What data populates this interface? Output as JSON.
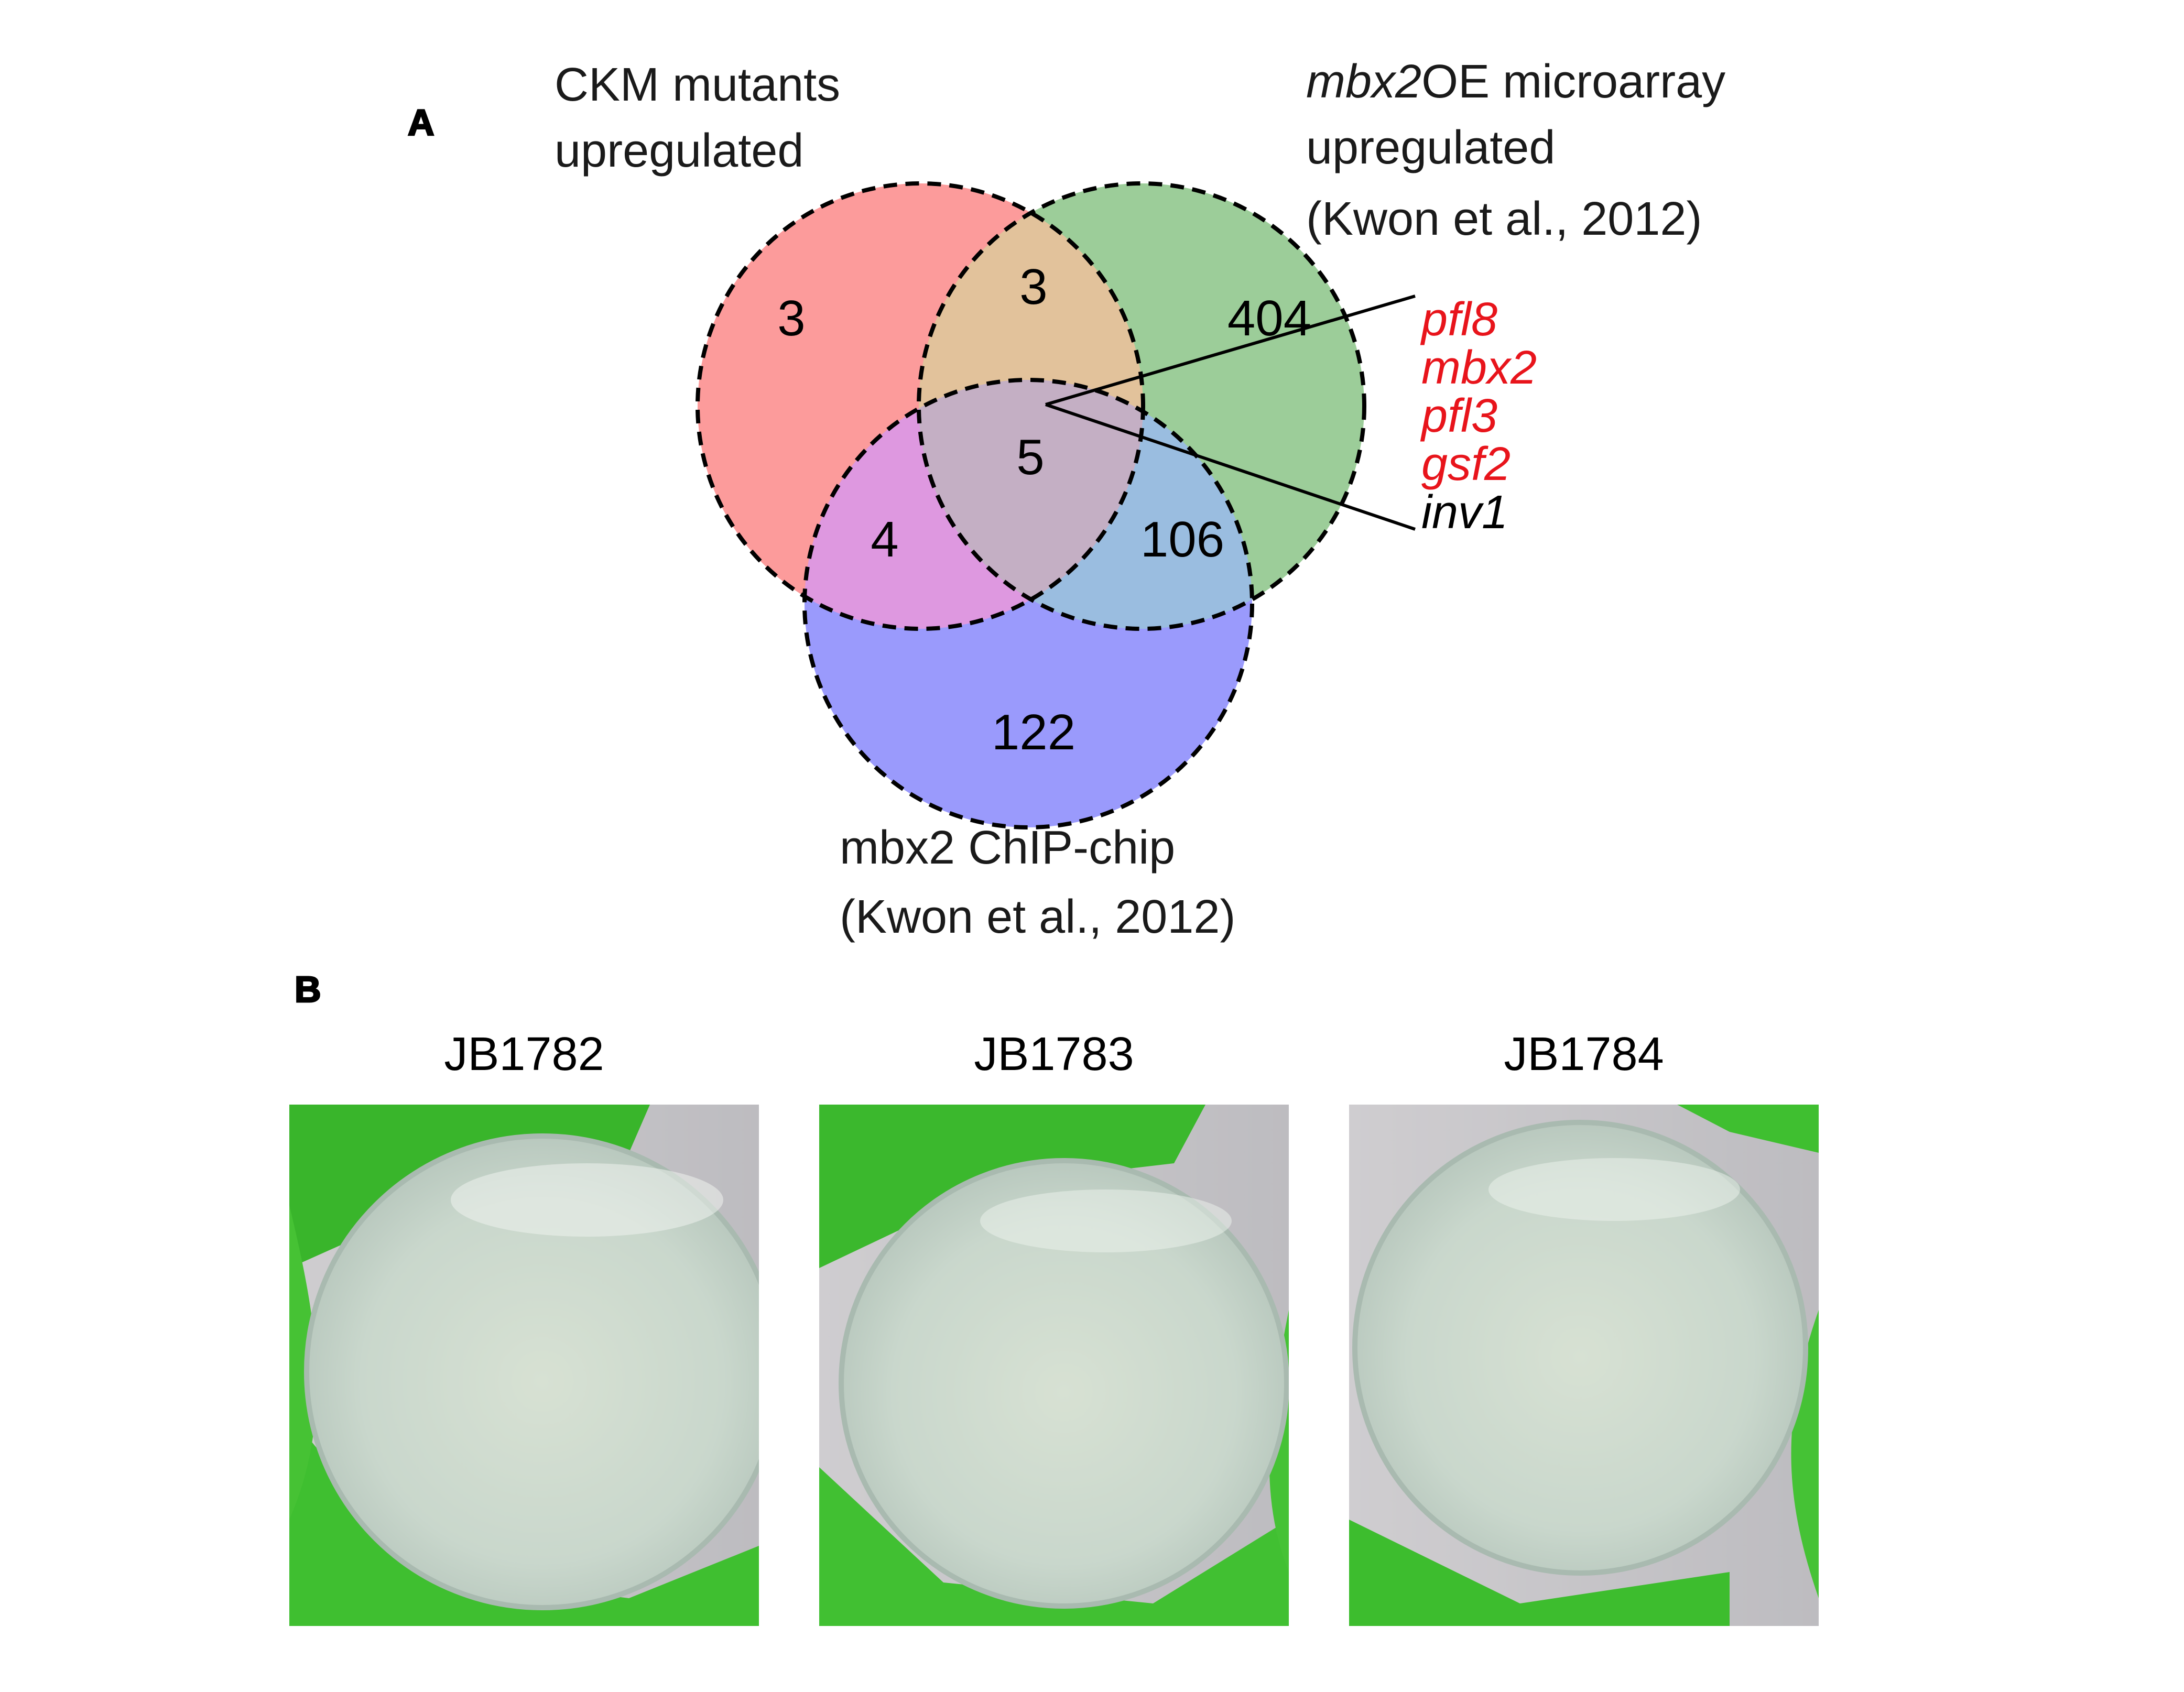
{
  "panel_a": {
    "letter": "A",
    "sets": {
      "ckm": {
        "line1": "CKM mutants",
        "line2": "upregulated"
      },
      "mbx2oe": {
        "line1_italic": "mbx2",
        "line1_rest": "OE microarray",
        "line2": "upregulated",
        "line3": "(Kwon et al., 2012)"
      },
      "chip": {
        "line1": "mbx2 ChIP-chip",
        "line2": "(Kwon et al., 2012)"
      }
    },
    "regions": {
      "ckm_only": "3",
      "ckm_mbx2oe": "3",
      "mbx2oe_only": "404",
      "all_three": "5",
      "ckm_chip": "4",
      "mbx2oe_chip": "106",
      "chip_only": "122"
    },
    "genes": [
      {
        "name": "pfl8",
        "color": "#e8141b"
      },
      {
        "name": "mbx2",
        "color": "#e8141b"
      },
      {
        "name": "pfl3",
        "color": "#e8141b"
      },
      {
        "name": "gsf2",
        "color": "#e8141b"
      },
      {
        "name": "inv1",
        "color": "#000000"
      }
    ],
    "colors": {
      "ckm_only": "#fc9b9b",
      "mbx2oe_only": "#9ccd99",
      "chip_only": "#9a9afc",
      "ckm_mbx2oe": "#e2c29b",
      "ckm_chip": "#de98e0",
      "mbx2oe_chip": "#9abde0",
      "all_three": "#c4afc4"
    }
  },
  "panel_b": {
    "letter": "B",
    "strains": [
      "JB1782",
      "JB1783",
      "JB1784"
    ]
  }
}
